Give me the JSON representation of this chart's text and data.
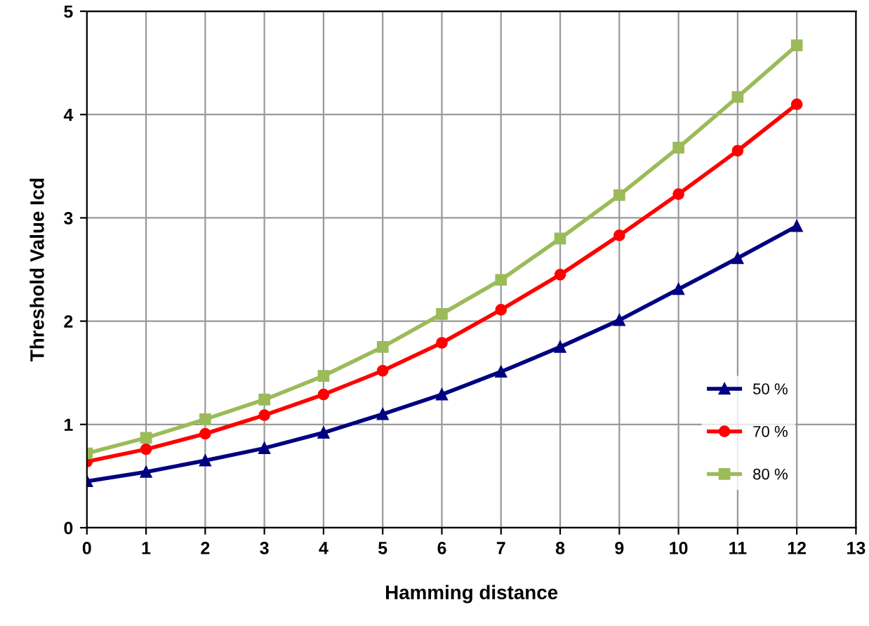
{
  "chart_data": {
    "type": "line",
    "xlabel": "Hamming distance",
    "ylabel": "Threshold Value Icd",
    "x": [
      0,
      1,
      2,
      3,
      4,
      5,
      6,
      7,
      8,
      9,
      10,
      11,
      12
    ],
    "series": [
      {
        "name": "50 %",
        "color": "#000080",
        "marker": "triangle",
        "values": [
          0.45,
          0.54,
          0.65,
          0.77,
          0.92,
          1.1,
          1.29,
          1.51,
          1.75,
          2.01,
          2.31,
          2.61,
          2.92
        ]
      },
      {
        "name": "70 %",
        "color": "#ff0000",
        "marker": "circle",
        "values": [
          0.64,
          0.76,
          0.91,
          1.09,
          1.29,
          1.52,
          1.79,
          2.11,
          2.45,
          2.83,
          3.23,
          3.65,
          4.1
        ]
      },
      {
        "name": "80 %",
        "color": "#9bbb59",
        "marker": "square",
        "values": [
          0.72,
          0.87,
          1.05,
          1.24,
          1.47,
          1.75,
          2.07,
          2.4,
          2.8,
          3.22,
          3.68,
          4.17,
          4.67
        ]
      }
    ],
    "xlim": [
      0,
      13
    ],
    "xticks": [
      0,
      1,
      2,
      3,
      4,
      5,
      6,
      7,
      8,
      9,
      10,
      11,
      12,
      13
    ],
    "ylim": [
      0,
      5
    ],
    "yticks": [
      0,
      1,
      2,
      3,
      4,
      5
    ],
    "grid": true,
    "legend": "bottom right",
    "line_style": "solid"
  }
}
